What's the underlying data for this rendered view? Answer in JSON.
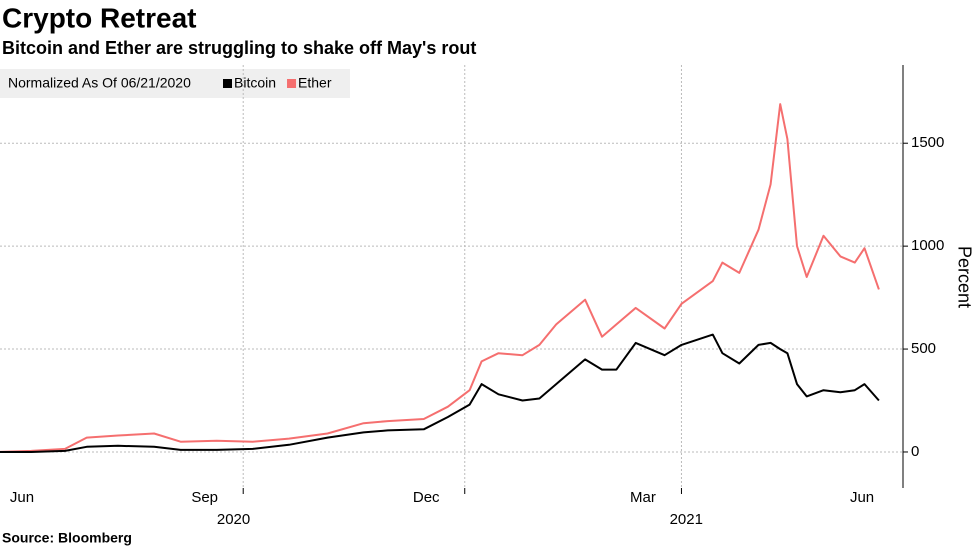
{
  "chart_data": {
    "type": "line",
    "title": "Crypto Retreat",
    "subtitle": "Bitcoin and Ether are struggling to shake off May's rout",
    "legend_title": "Normalized As Of 06/21/2020",
    "y_label": "Percent",
    "source": "Source: Bloomberg",
    "x": [
      "2020-06-21",
      "2020-07-05",
      "2020-07-19",
      "2020-07-28",
      "2020-08-10",
      "2020-08-25",
      "2020-09-05",
      "2020-09-20",
      "2020-10-05",
      "2020-10-20",
      "2020-11-05",
      "2020-11-20",
      "2020-11-30",
      "2020-12-15",
      "2020-12-25",
      "2021-01-03",
      "2021-01-08",
      "2021-01-15",
      "2021-01-25",
      "2021-02-01",
      "2021-02-08",
      "2021-02-20",
      "2021-02-27",
      "2021-03-05",
      "2021-03-13",
      "2021-03-25",
      "2021-04-01",
      "2021-04-14",
      "2021-04-18",
      "2021-04-25",
      "2021-05-03",
      "2021-05-08",
      "2021-05-12",
      "2021-05-15",
      "2021-05-19",
      "2021-05-23",
      "2021-05-30",
      "2021-06-06",
      "2021-06-12",
      "2021-06-16",
      "2021-06-22"
    ],
    "series": [
      {
        "name": "Bitcoin",
        "color": "#000000",
        "values": [
          0,
          0,
          5,
          25,
          30,
          25,
          10,
          10,
          15,
          35,
          70,
          95,
          105,
          110,
          170,
          230,
          330,
          280,
          250,
          260,
          330,
          450,
          400,
          400,
          530,
          470,
          520,
          570,
          480,
          430,
          520,
          530,
          500,
          480,
          330,
          270,
          300,
          290,
          300,
          330,
          250
        ]
      },
      {
        "name": "Ether",
        "color": "#f56f6f",
        "values": [
          0,
          5,
          15,
          70,
          80,
          90,
          50,
          55,
          50,
          65,
          90,
          140,
          150,
          160,
          220,
          300,
          440,
          480,
          470,
          520,
          620,
          740,
          560,
          620,
          700,
          600,
          720,
          830,
          920,
          870,
          1080,
          1300,
          1690,
          1520,
          1000,
          850,
          1050,
          950,
          920,
          990,
          790
        ]
      }
    ],
    "xlim": [
      "2020-06-22",
      "2021-07-02"
    ],
    "xticks": [
      {
        "value": "2020-06-16",
        "label": "Jun"
      },
      {
        "value": "2020-09-15",
        "label": "Sep"
      },
      {
        "value": "2020-12-16",
        "label": "Dec"
      },
      {
        "value": "2021-03-16",
        "label": "Mar"
      },
      {
        "value": "2021-06-15",
        "label": "Jun"
      }
    ],
    "xgrid": [
      "2020-10-01",
      "2021-01-01",
      "2021-04-01"
    ],
    "xyears": [
      {
        "value": "2020-09-27",
        "label": "2020"
      },
      {
        "value": "2021-04-03",
        "label": "2021"
      }
    ],
    "ylim": [
      -175,
      1880
    ],
    "yticks": [
      0,
      500,
      1000,
      1500
    ],
    "grid": true
  }
}
